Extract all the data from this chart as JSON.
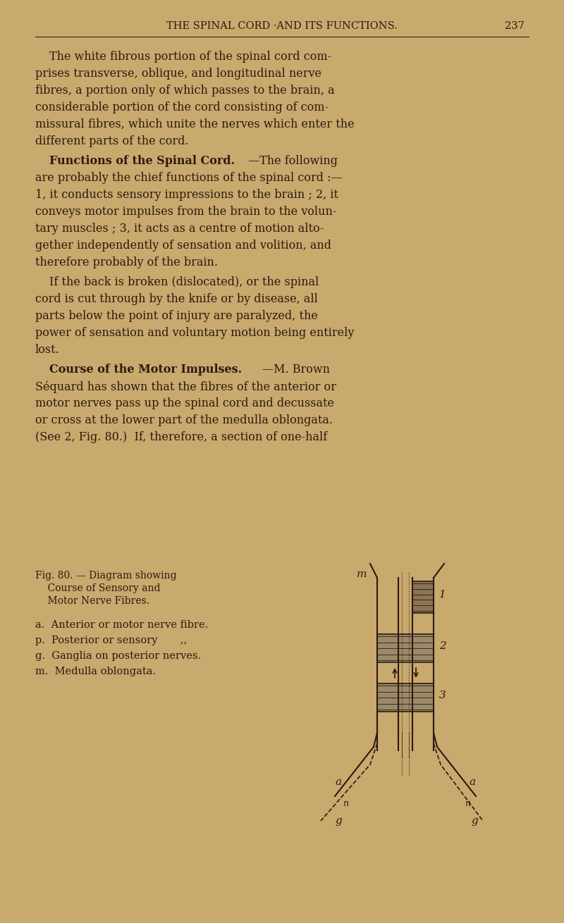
{
  "bg_color": "#C8A96E",
  "text_color": "#2C1A0E",
  "page_header": "THE SPINAL CORD ·AND ITS FUNCTIONS.",
  "page_number": "237",
  "para1": "The white fibrous portion of the spinal cord com-\nprises transverse, oblique, and longitudinal nerve\nfibres, a portion only of which passes to the brain, a\nconsiderable portion of the cord consisting of com-\nmissural fibres, which unite the nerves which enter the\ndifferent parts of the cord.",
  "heading2_bold": "Functions of the Spinal Cord.",
  "heading2_rest": "—The following\nare probably the chief functions of the spinal cord :—\n1, it conducts sensory impressions to the brain ; 2, it\nconveys motor impulses from the brain to the volun-\ntary muscles ; 3, it acts as a centre of motion alto-\ngether independently of sensation and volition, and\ntherefore probably of the brain.",
  "para3": "If the back is broken (dislocated), or the spinal\ncord is cut through by the knife or by disease, all\nparts below the point of injury are paralyzed, the\npower of sensation and voluntary motion being entirely\nlost.",
  "heading4_bold": "Course of the Motor Impulses.",
  "heading4_rest": "—M. Brown\nSéquard has shown that the fibres of the anterior or\nmotor nerves pass up the spinal cord and decussate\nor cross at the lower part of the medulla oblongata.\n(See 2, Fig. 80.)  If, therefore, a section of one-half",
  "fig_caption_line1": "Fig. 80. — Diagram showing",
  "fig_caption_line2": "Course of Sensory and",
  "fig_caption_line3": "Motor Nerve Fibres.",
  "legend_a": "a.  Anterior or motor nerve fibre.",
  "legend_p": "p.  Posterior or sensory       ,,",
  "legend_g": "g.  Ganglia on posterior nerves.",
  "legend_m": "m.  Medulla oblongata."
}
